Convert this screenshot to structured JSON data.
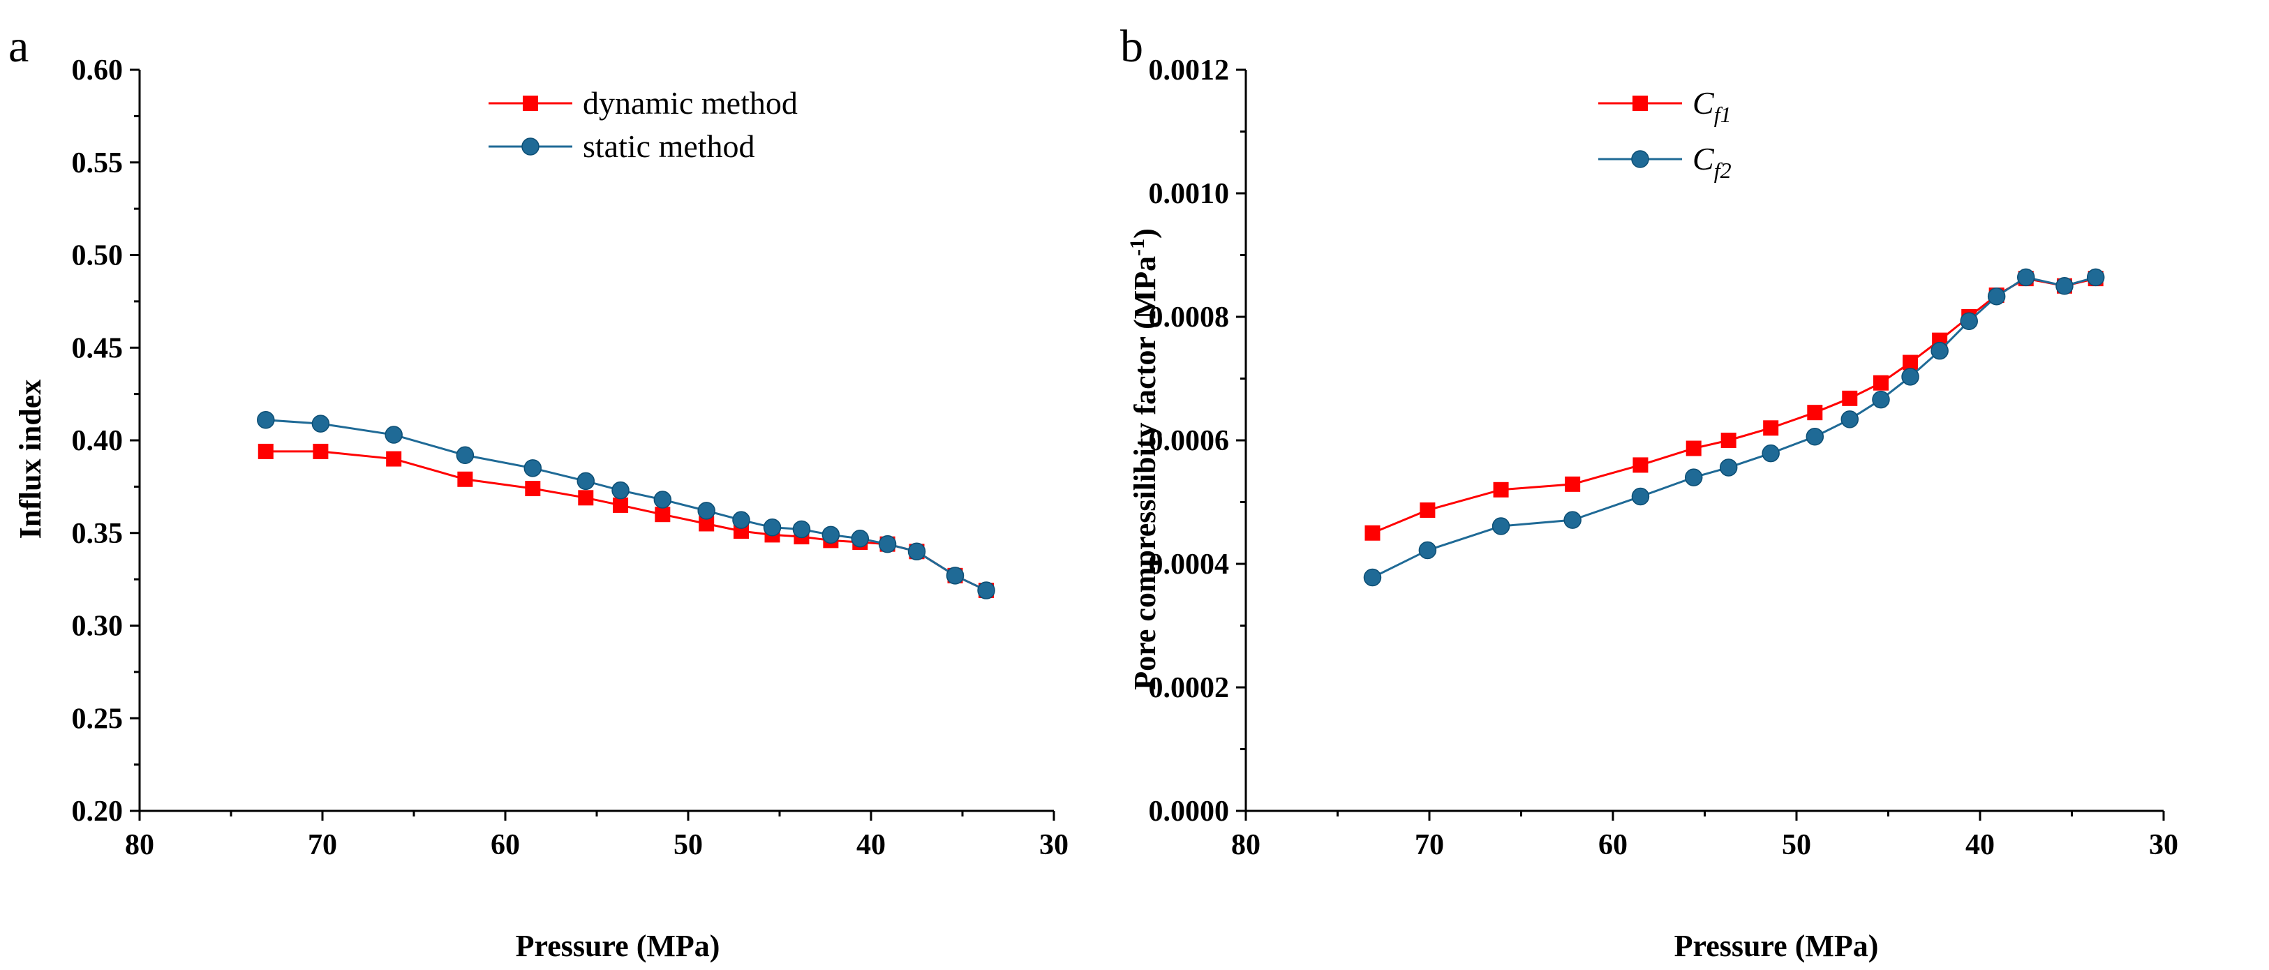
{
  "chart_data": [
    {
      "type": "line",
      "panel_label": "a",
      "xlabel": "Pressure (MPa)",
      "ylabel": "Influx index",
      "xlim": [
        80,
        30
      ],
      "ylim": [
        0.2,
        0.6
      ],
      "x_reversed": true,
      "xticks": [
        80,
        70,
        60,
        50,
        40,
        30
      ],
      "xtick_labels": [
        "80",
        "70",
        "60",
        "50",
        "40",
        "30"
      ],
      "yticks": [
        0.2,
        0.25,
        0.3,
        0.35,
        0.4,
        0.45,
        0.5,
        0.55,
        0.6
      ],
      "ytick_labels": [
        "0.20",
        "0.25",
        "0.30",
        "0.35",
        "0.40",
        "0.45",
        "0.50",
        "0.55",
        "0.60"
      ],
      "grid": false,
      "legend_position": "top-center",
      "series": [
        {
          "name": "dynamic method",
          "color": "#ff0000",
          "marker": "square",
          "x": [
            73.1,
            70.1,
            66.1,
            62.2,
            58.5,
            55.6,
            53.7,
            51.4,
            49.0,
            47.1,
            45.4,
            43.8,
            42.2,
            40.6,
            39.1,
            37.5,
            35.4,
            33.7
          ],
          "y": [
            0.394,
            0.394,
            0.39,
            0.379,
            0.374,
            0.369,
            0.365,
            0.36,
            0.355,
            0.351,
            0.349,
            0.348,
            0.346,
            0.345,
            0.344,
            0.34,
            0.327,
            0.319
          ]
        },
        {
          "name": "static method",
          "color": "#1f6a96",
          "marker": "circle",
          "x": [
            73.1,
            70.1,
            66.1,
            62.2,
            58.5,
            55.6,
            53.7,
            51.4,
            49.0,
            47.1,
            45.4,
            43.8,
            42.2,
            40.6,
            39.1,
            37.5,
            35.4,
            33.7
          ],
          "y": [
            0.411,
            0.409,
            0.403,
            0.392,
            0.385,
            0.378,
            0.373,
            0.368,
            0.362,
            0.357,
            0.353,
            0.352,
            0.349,
            0.347,
            0.344,
            0.34,
            0.327,
            0.319
          ]
        }
      ]
    },
    {
      "type": "line",
      "panel_label": "b",
      "xlabel": "Pressure (MPa)",
      "ylabel": "Pore  compressilibity factor (MPa",
      "ylabel_sup": "-1",
      "ylabel_close": ")",
      "xlim": [
        80,
        30
      ],
      "ylim": [
        0.0,
        0.0012
      ],
      "x_reversed": true,
      "xticks": [
        80,
        70,
        60,
        50,
        40,
        30
      ],
      "xtick_labels": [
        "80",
        "70",
        "60",
        "50",
        "40",
        "30"
      ],
      "yticks": [
        0.0,
        0.0002,
        0.0004,
        0.0006,
        0.0008,
        0.001,
        0.0012
      ],
      "ytick_labels": [
        "0.0000",
        "0.0002",
        "0.0004",
        "0.0006",
        "0.0008",
        "0.0010",
        "0.0012"
      ],
      "grid": false,
      "legend_position": "top-center",
      "series": [
        {
          "name": "C",
          "name_sub": "f1",
          "color": "#ff0000",
          "marker": "square",
          "x": [
            73.1,
            70.1,
            66.1,
            62.2,
            58.5,
            55.6,
            53.7,
            51.4,
            49.0,
            47.1,
            45.4,
            43.8,
            42.2,
            40.6,
            39.1,
            37.5,
            35.4,
            33.7
          ],
          "y": [
            0.00045,
            0.000487,
            0.00052,
            0.000529,
            0.00056,
            0.000587,
            0.0006,
            0.00062,
            0.000645,
            0.000668,
            0.000693,
            0.000726,
            0.000762,
            0.0008,
            0.000835,
            0.000862,
            0.00085,
            0.000862
          ]
        },
        {
          "name": "C",
          "name_sub": "f2",
          "color": "#1f6a96",
          "marker": "circle",
          "x": [
            73.1,
            70.1,
            66.1,
            62.2,
            58.5,
            55.6,
            53.7,
            51.4,
            49.0,
            47.1,
            45.4,
            43.8,
            42.2,
            40.6,
            39.1,
            37.5,
            35.4,
            33.7
          ],
          "y": [
            0.000378,
            0.000422,
            0.000461,
            0.000471,
            0.000509,
            0.00054,
            0.000556,
            0.000579,
            0.000606,
            0.000634,
            0.000666,
            0.000703,
            0.000745,
            0.000793,
            0.000833,
            0.000864,
            0.00085,
            0.000864
          ]
        }
      ]
    }
  ]
}
